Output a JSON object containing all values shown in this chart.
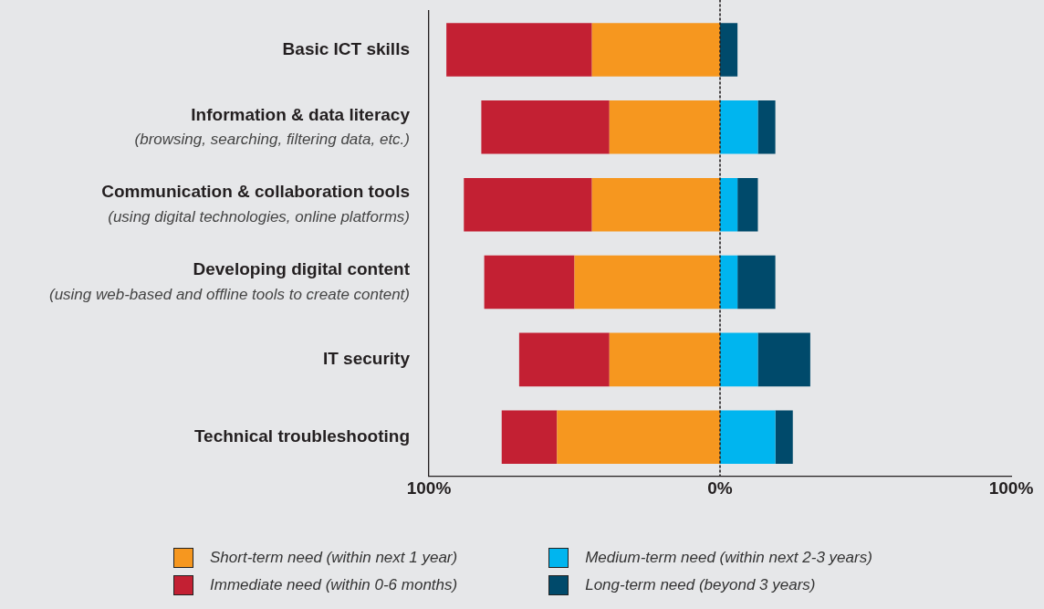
{
  "chart_data": {
    "type": "bar",
    "orientation": "horizontal",
    "stacked": true,
    "categories": [
      "Basic ICT skills",
      "Information & data literacy\n(browsing, searching, filtering data, etc.)",
      "Communication & collaboration tools\n(using digital technologies, online platforms)",
      "Developing digital content\n(using web-based and offline tools to create content)",
      "IT security",
      "Technical troubleshooting"
    ],
    "series": [
      {
        "name": "Short-term need (within next 1 year)",
        "color": "#f6971f",
        "values": [
          -44,
          -38,
          -44,
          -50,
          -38,
          -56
        ]
      },
      {
        "name": "Immediate need (within 0-6 months)",
        "color": "#c32033",
        "values": [
          -50,
          -44,
          -44,
          -31,
          -31,
          -19
        ]
      },
      {
        "name": "Medium-term need (within next 2-3 years)",
        "color": "#00b5ef",
        "values": [
          0,
          13,
          6,
          6,
          13,
          19
        ]
      },
      {
        "name": "Long-term need (beyond 3 years)",
        "color": "#004a6b",
        "values": [
          6,
          6,
          7,
          13,
          18,
          6
        ]
      }
    ],
    "xlim": [
      -100,
      100
    ],
    "xticks": [
      {
        "value": -100,
        "label": "100%"
      },
      {
        "value": 0,
        "label": "0%"
      },
      {
        "value": 100,
        "label": "100%"
      }
    ],
    "ref_lines": [
      {
        "axis": "x",
        "value": 0,
        "line_style": "dotted",
        "color": "#231f20"
      }
    ],
    "grid": false,
    "legend": "bottom"
  }
}
